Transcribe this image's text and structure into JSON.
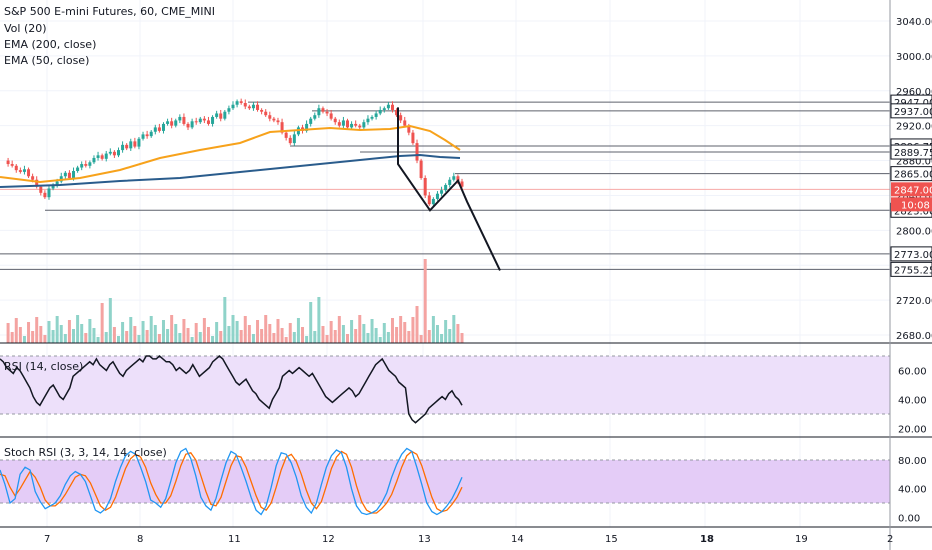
{
  "legend": {
    "symbol": "S&P 500 E-mini Futures, 60, CME_MINI",
    "vol": "Vol (20)",
    "ema200": "EMA (200, close)",
    "ema50": "EMA (50, close)",
    "rsi": "RSI (14, close)",
    "stoch": "Stoch RSI (3, 3, 14, 14, close)"
  },
  "colors": {
    "up": "#26a69a",
    "down": "#ef5350",
    "ema50": "#f7a21b",
    "ema200": "#2a5c8c",
    "rsi_line": "#131722",
    "rsi_band": "#ede0fa",
    "stoch_band": "#e4ccf7",
    "stoch_k": "#2196f3",
    "stoch_d": "#ff6d00",
    "current_price_bg": "#ef5350",
    "level_box_bg": "#787b86"
  },
  "chart_data": {
    "type": "candlestick",
    "price_axis": {
      "ylim": [
        2650,
        3060
      ],
      "ticks": [
        "3040.00",
        "3000.00",
        "2960.00",
        "2920.00",
        "2880.00",
        "2840.00",
        "2800.00",
        "2760.00",
        "2720.00",
        "2680.00"
      ]
    },
    "x_axis_ticks": [
      "7",
      "8",
      "11",
      "12",
      "13",
      "14",
      "15",
      "18",
      "19",
      "2"
    ],
    "horizontal_levels": [
      "2947.00",
      "2937.00",
      "2896.75",
      "2889.75",
      "2865.00",
      "2823.00",
      "2773.00",
      "2755.25"
    ],
    "current_price": "2847.00",
    "countdown": "10:08",
    "rsi_axis": {
      "ylim": [
        10,
        80
      ],
      "ticks": [
        "60.00",
        "40.00",
        "20.00"
      ],
      "band": [
        30,
        70
      ]
    },
    "stoch_axis": {
      "ylim": [
        -10,
        100
      ],
      "ticks": [
        "80.00",
        "40.00",
        "0.00"
      ],
      "band": [
        20,
        80
      ]
    },
    "projection_path_prices": [
      2876,
      2823,
      2857,
      2833,
      2754
    ],
    "rsi_values": [
      68,
      66,
      62,
      60,
      58,
      62,
      60,
      56,
      52,
      48,
      42,
      38,
      36,
      40,
      44,
      48,
      50,
      46,
      42,
      40,
      44,
      48,
      56,
      58,
      60,
      62,
      64,
      66,
      64,
      68,
      64,
      62,
      60,
      64,
      66,
      62,
      58,
      56,
      60,
      62,
      64,
      66,
      68,
      66,
      70,
      70,
      68,
      68,
      70,
      68,
      66,
      66,
      64,
      60,
      62,
      60,
      58,
      60,
      64,
      60,
      56,
      58,
      60,
      62,
      66,
      68,
      70,
      68,
      64,
      60,
      56,
      52,
      50,
      52,
      54,
      50,
      46,
      44,
      40,
      38,
      36,
      34,
      40,
      44,
      48,
      56,
      58,
      60,
      58,
      60,
      62,
      60,
      58,
      56,
      58,
      54,
      50,
      46,
      42,
      40,
      38,
      40,
      42,
      44,
      46,
      48,
      46,
      42,
      44,
      48,
      52,
      56,
      60,
      64,
      66,
      68,
      64,
      60,
      58,
      56,
      52,
      50,
      48,
      30,
      26,
      24,
      26,
      28,
      30,
      34,
      36,
      38,
      40,
      42,
      40,
      44,
      46,
      42,
      40,
      36
    ],
    "stoch_k_values": [
      66,
      46,
      20,
      26,
      60,
      70,
      66,
      36,
      22,
      12,
      16,
      20,
      30,
      46,
      58,
      64,
      60,
      50,
      30,
      10,
      6,
      12,
      26,
      50,
      70,
      86,
      92,
      88,
      70,
      50,
      24,
      20,
      14,
      26,
      50,
      76,
      92,
      96,
      82,
      58,
      28,
      16,
      10,
      26,
      52,
      76,
      92,
      88,
      70,
      50,
      28,
      10,
      4,
      16,
      42,
      72,
      90,
      88,
      76,
      56,
      30,
      14,
      6,
      20,
      46,
      70,
      86,
      94,
      90,
      70,
      40,
      16,
      6,
      4,
      6,
      10,
      20,
      34,
      56,
      74,
      88,
      96,
      92,
      70,
      46,
      20,
      8,
      4,
      8,
      16,
      26,
      40,
      56
    ],
    "stoch_d_values": [
      60,
      58,
      42,
      30,
      40,
      52,
      64,
      56,
      42,
      24,
      16,
      16,
      22,
      32,
      44,
      56,
      60,
      58,
      48,
      32,
      16,
      10,
      14,
      28,
      48,
      68,
      82,
      88,
      84,
      70,
      48,
      32,
      20,
      20,
      30,
      50,
      72,
      88,
      90,
      80,
      58,
      36,
      18,
      16,
      28,
      50,
      72,
      86,
      84,
      70,
      50,
      30,
      14,
      10,
      20,
      42,
      66,
      84,
      88,
      78,
      60,
      38,
      20,
      12,
      22,
      44,
      68,
      84,
      92,
      88,
      70,
      44,
      22,
      10,
      6,
      6,
      12,
      20,
      32,
      50,
      70,
      86,
      92,
      88,
      72,
      50,
      28,
      12,
      8,
      10,
      18,
      28,
      42
    ]
  }
}
